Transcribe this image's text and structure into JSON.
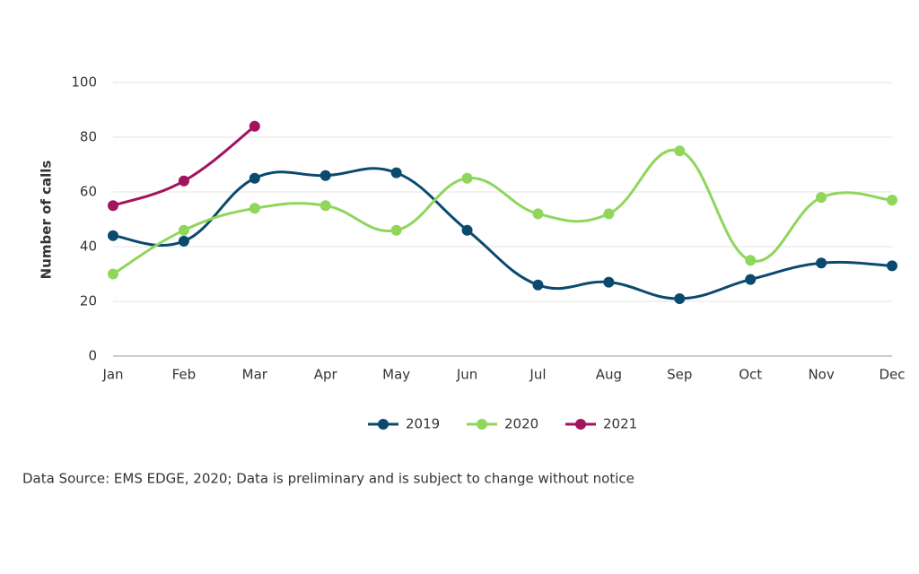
{
  "chart_data": {
    "type": "line",
    "smooth": true,
    "y_label": "Number of calls",
    "categories": [
      "Jan",
      "Feb",
      "Mar",
      "Apr",
      "May",
      "Jun",
      "Jul",
      "Aug",
      "Sep",
      "Oct",
      "Nov",
      "Dec"
    ],
    "series": [
      {
        "name": "2019",
        "color": "#0b4a6f",
        "values": [
          44,
          42,
          65,
          66,
          67,
          46,
          26,
          27,
          21,
          28,
          34,
          33
        ]
      },
      {
        "name": "2020",
        "color": "#8fd65b",
        "values": [
          30,
          46,
          54,
          55,
          46,
          65,
          52,
          52,
          75,
          35,
          58,
          57
        ]
      },
      {
        "name": "2021",
        "color": "#a3135f",
        "values": [
          55,
          64,
          84,
          null,
          null,
          null,
          null,
          null,
          null,
          null,
          null,
          null
        ]
      }
    ],
    "ylim": [
      0,
      100
    ],
    "yticks": [
      0,
      20,
      40,
      60,
      80,
      100
    ],
    "grid": true,
    "legend": "bottom",
    "source": "Data Source: EMS EDGE, 2020; Data is preliminary and is subject to change without notice"
  }
}
